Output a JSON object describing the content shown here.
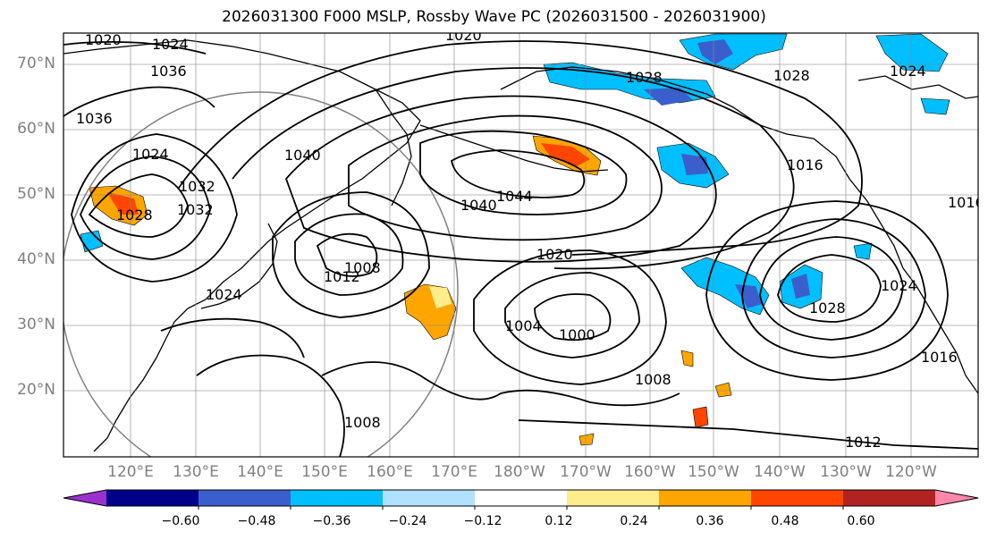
{
  "title": "2026031300 F000 MSLP, Rossby Wave PC (2026031500 - 2026031900)",
  "lat_labels": [
    "70°N",
    "60°N",
    "50°N",
    "40°N",
    "30°N",
    "20°N"
  ],
  "lon_labels": [
    "120°E",
    "130°E",
    "140°E",
    "150°E",
    "160°E",
    "170°E",
    "180°W",
    "170°W",
    "160°W",
    "150°W",
    "140°W",
    "130°W",
    "120°W"
  ],
  "contour_labels": [
    "1020",
    "1024",
    "1036",
    "1036",
    "1024",
    "1028",
    "1040",
    "1032",
    "1044",
    "1040",
    "1020",
    "1012",
    "1008",
    "1000",
    "1004",
    "1008",
    "1008",
    "1012",
    "1028",
    "1028",
    "1024",
    "1016",
    "1024",
    "1016",
    "1032",
    "1020",
    "1024",
    "1016"
  ],
  "colorbar": {
    "ticks": [
      "−0.60",
      "−0.48",
      "−0.36",
      "−0.24",
      "−0.12",
      "0.12",
      "0.24",
      "0.36",
      "0.48",
      "0.60"
    ],
    "colors": [
      "#9932CC",
      "#00008B",
      "#3A5FCD",
      "#00BFFF",
      "#B0E2FF",
      "#FFFFFF",
      "#FFEC8B",
      "#FFA500",
      "#FF4500",
      "#B22222",
      "#FF88AA"
    ]
  },
  "shading_colors": {
    "neg_light": "#B0E2FF",
    "neg_mid": "#00BFFF",
    "neg_dark": "#3A5FCD",
    "pos_light": "#FFEC8B",
    "pos_mid": "#FFA500",
    "pos_dark": "#FF4500"
  }
}
